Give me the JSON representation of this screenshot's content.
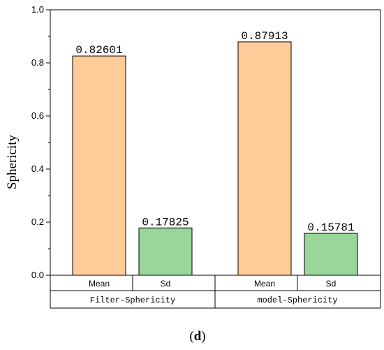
{
  "chart_data": {
    "type": "bar",
    "ylabel": "Sphericity",
    "ylim": [
      0,
      1.0
    ],
    "yticks": [
      "0.0",
      "0.2",
      "0.4",
      "0.6",
      "0.8",
      "1.0"
    ],
    "bars": [
      {
        "group": "Filter-Sphericity",
        "category": "Mean",
        "value": 0.82601,
        "label": "0.82601",
        "color": "#FFCC99"
      },
      {
        "group": "Filter-Sphericity",
        "category": "Sd",
        "value": 0.17825,
        "label": "0.17825",
        "color": "#99D699"
      },
      {
        "group": "model-Sphericity",
        "category": "Mean",
        "value": 0.87913,
        "label": "0.87913",
        "color": "#FFCC99"
      },
      {
        "group": "model-Sphericity",
        "category": "Sd",
        "value": 0.15781,
        "label": "0.15781",
        "color": "#99D699"
      }
    ],
    "groups": [
      "Filter-Sphericity",
      "model-Sphericity"
    ],
    "caption": {
      "open": "(",
      "letter": "d",
      "close": ")"
    }
  }
}
